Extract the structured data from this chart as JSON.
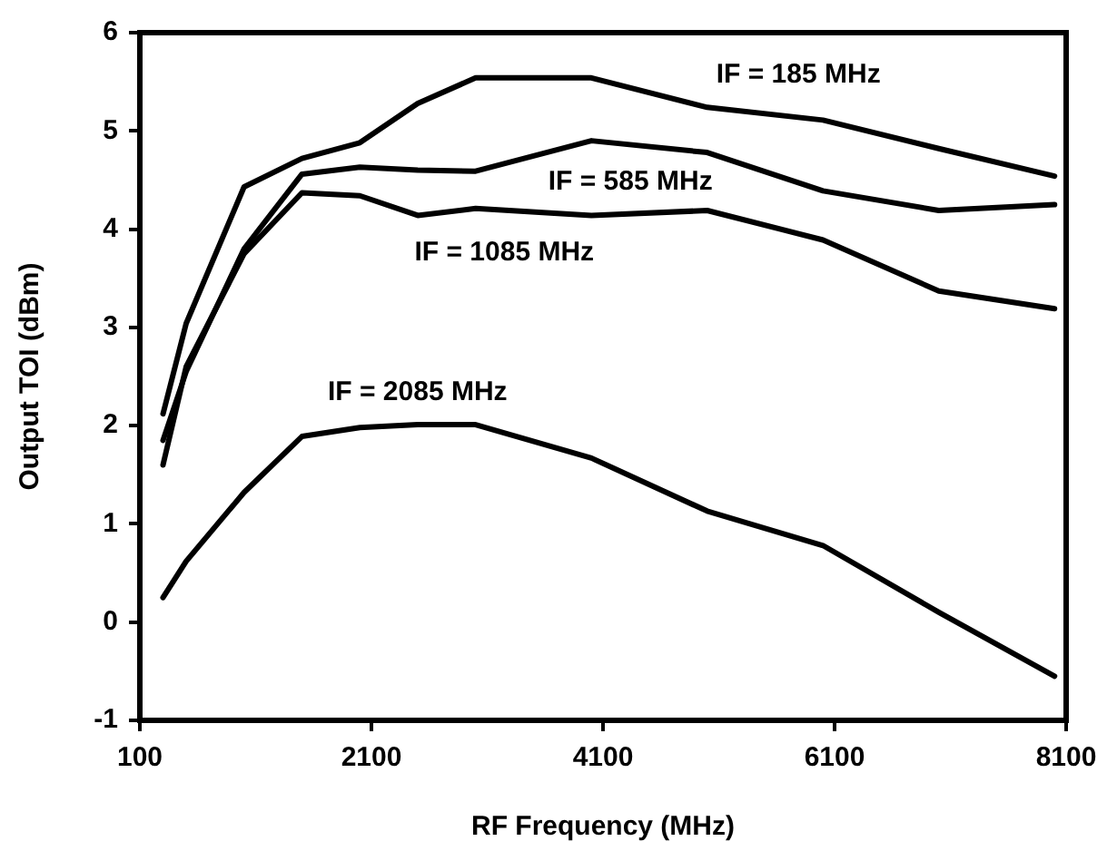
{
  "chart_data": {
    "type": "line",
    "xlabel": "RF Frequency (MHz)",
    "ylabel": "Output TOI (dBm)",
    "xlim": [
      100,
      8100
    ],
    "xticks": [
      100,
      2100,
      4100,
      6100,
      8100
    ],
    "ylim": [
      -1,
      6
    ],
    "yticks": [
      -1,
      0,
      1,
      2,
      3,
      4,
      5,
      6
    ],
    "grid": false,
    "legend": false,
    "marker": "none",
    "line_style": "solid",
    "x": [
      300,
      500,
      1000,
      1500,
      2000,
      2500,
      3000,
      4000,
      5000,
      6000,
      7000,
      8000
    ],
    "series": [
      {
        "name": "IF = 185 MHz",
        "color": "#000000",
        "values": [
          2.12,
          3.04,
          4.43,
          4.72,
          4.88,
          5.28,
          5.54,
          5.54,
          5.24,
          5.11,
          4.82,
          4.54
        ]
      },
      {
        "name": "IF = 585 MHz",
        "color": "#000000",
        "values": [
          1.85,
          2.55,
          3.8,
          4.56,
          4.63,
          4.6,
          4.59,
          4.9,
          4.78,
          4.39,
          4.19,
          4.25
        ]
      },
      {
        "name": "IF = 1085 MHz",
        "color": "#000000",
        "values": [
          1.6,
          2.6,
          3.75,
          4.37,
          4.34,
          4.14,
          4.21,
          4.14,
          4.19,
          3.89,
          3.37,
          3.19
        ]
      },
      {
        "name": "IF = 2085 MHz",
        "color": "#000000",
        "values": [
          0.25,
          0.62,
          1.32,
          1.89,
          1.98,
          2.01,
          2.01,
          1.67,
          1.13,
          0.78,
          0.1,
          -0.55
        ]
      }
    ]
  }
}
